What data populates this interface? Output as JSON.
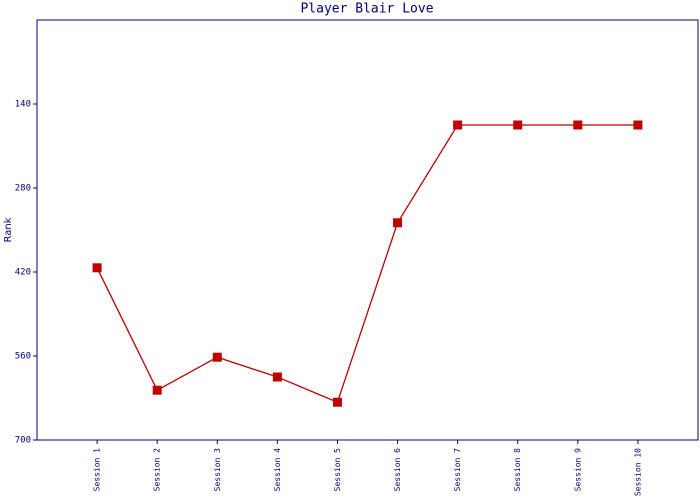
{
  "chart_data": {
    "type": "line",
    "title": "Player Blair Love",
    "y_label": "Rank",
    "categories": [
      "Session 1",
      "Session 2",
      "Session 3",
      "Session 4",
      "Session 5",
      "Session 6",
      "Session 7",
      "Session 8",
      "Session 9",
      "Session 10"
    ],
    "series": [
      {
        "name": "Rank",
        "color": "#c00000",
        "values": [
          413,
          617,
          562,
          595,
          637,
          338,
          175,
          175,
          175,
          175
        ]
      }
    ],
    "ylim": [
      700,
      0
    ],
    "yticks": [
      140,
      280,
      420,
      560,
      700
    ],
    "grid": false
  }
}
